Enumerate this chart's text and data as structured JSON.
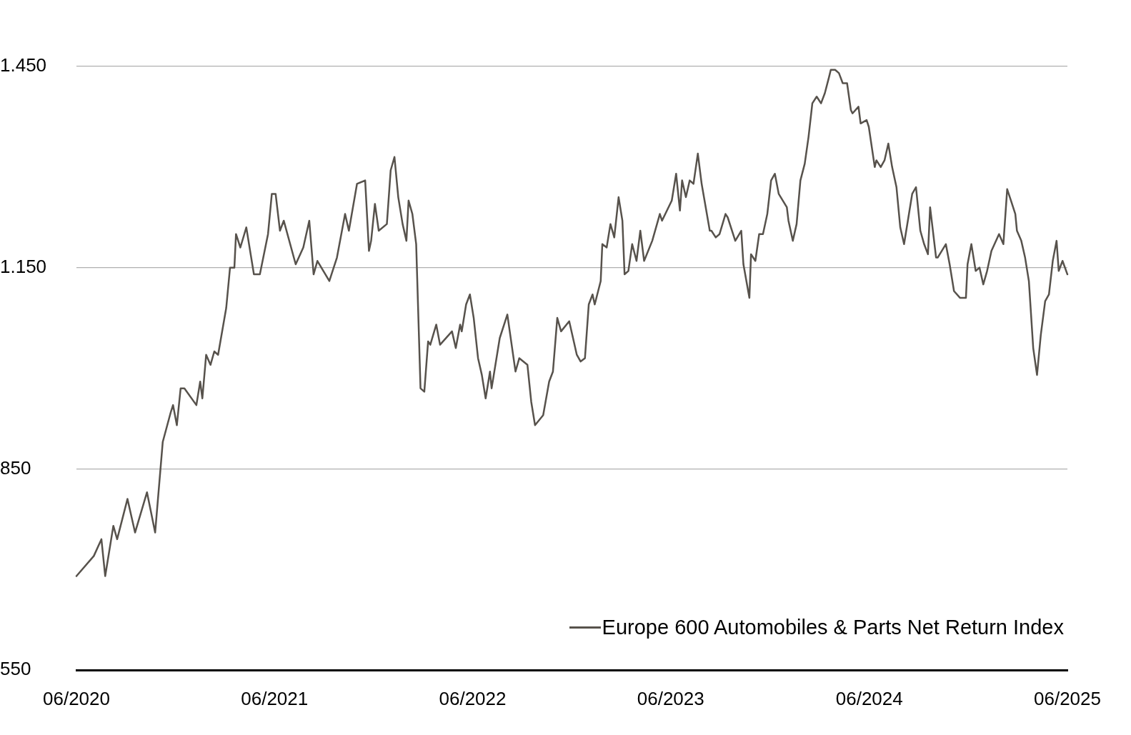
{
  "chart_data": {
    "type": "line",
    "grid": "y",
    "legend": "bottom right",
    "xlim": [
      "2020-06",
      "2025-06"
    ],
    "xticks": [
      {
        "value": "2020-06",
        "label": "06/2020"
      },
      {
        "value": "2021-06",
        "label": "06/2021"
      },
      {
        "value": "2022-06",
        "label": "06/2022"
      },
      {
        "value": "2023-06",
        "label": "06/2023"
      },
      {
        "value": "2024-06",
        "label": "06/2024"
      },
      {
        "value": "2025-06",
        "label": "06/2025"
      }
    ],
    "ylim": [
      550,
      1450
    ],
    "yticks": [
      {
        "value": 550,
        "label": "550"
      },
      {
        "value": 850,
        "label": "850"
      },
      {
        "value": 1150,
        "label": "1.150"
      },
      {
        "value": 1450,
        "label": "1.450"
      }
    ],
    "series": [
      {
        "name": "Europe 600 Automobiles & Parts Net Return Index",
        "color": "#57524c",
        "x": [
          "2020-06-01",
          "2020-07-03",
          "2020-07-17",
          "2020-07-24",
          "2020-08-08",
          "2020-08-15",
          "2020-09-03",
          "2020-09-17",
          "2020-10-09",
          "2020-10-24",
          "2020-11-07",
          "2020-11-22",
          "2020-11-26",
          "2020-12-03",
          "2020-12-10",
          "2020-12-17",
          "2021-01-08",
          "2021-01-15",
          "2021-01-19",
          "2021-01-26",
          "2021-02-03",
          "2021-02-10",
          "2021-02-17",
          "2021-03-04",
          "2021-03-11",
          "2021-03-19",
          "2021-03-22",
          "2021-03-30",
          "2021-04-10",
          "2021-04-24",
          "2021-05-05",
          "2021-05-20",
          "2021-05-27",
          "2021-06-03",
          "2021-06-11",
          "2021-06-18",
          "2021-07-10",
          "2021-07-24",
          "2021-08-04",
          "2021-08-12",
          "2021-08-19",
          "2021-09-10",
          "2021-09-24",
          "2021-10-09",
          "2021-10-16",
          "2021-10-31",
          "2021-11-15",
          "2021-11-22",
          "2021-11-26",
          "2021-12-03",
          "2021-12-10",
          "2021-12-25",
          "2022-01-01",
          "2022-01-08",
          "2022-01-15",
          "2022-01-23",
          "2022-01-30",
          "2022-02-03",
          "2022-02-10",
          "2022-02-17",
          "2022-02-25",
          "2022-03-04",
          "2022-03-11",
          "2022-03-15",
          "2022-03-26",
          "2022-04-02",
          "2022-04-24",
          "2022-05-01",
          "2022-05-09",
          "2022-05-12",
          "2022-05-20",
          "2022-05-27",
          "2022-06-03",
          "2022-06-11",
          "2022-06-18",
          "2022-06-25",
          "2022-07-03",
          "2022-07-06",
          "2022-07-21",
          "2022-08-04",
          "2022-08-19",
          "2022-08-26",
          "2022-09-10",
          "2022-09-17",
          "2022-09-24",
          "2022-10-09",
          "2022-10-20",
          "2022-10-27",
          "2022-11-04",
          "2022-11-11",
          "2022-11-26",
          "2022-12-10",
          "2022-12-17",
          "2022-12-25",
          "2023-01-01",
          "2023-01-08",
          "2023-01-12",
          "2023-01-23",
          "2023-01-26",
          "2023-02-03",
          "2023-02-10",
          "2023-02-17",
          "2023-02-25",
          "2023-03-04",
          "2023-03-08",
          "2023-03-15",
          "2023-03-22",
          "2023-03-30",
          "2023-04-06",
          "2023-04-13",
          "2023-04-28",
          "2023-05-12",
          "2023-05-16",
          "2023-06-03",
          "2023-06-11",
          "2023-06-18",
          "2023-06-22",
          "2023-06-29",
          "2023-07-06",
          "2023-07-13",
          "2023-07-21",
          "2023-07-28",
          "2023-08-12",
          "2023-08-15",
          "2023-08-23",
          "2023-08-30",
          "2023-09-10",
          "2023-09-14",
          "2023-09-28",
          "2023-10-09",
          "2023-10-13",
          "2023-10-24",
          "2023-10-27",
          "2023-11-04",
          "2023-11-11",
          "2023-11-18",
          "2023-11-26",
          "2023-12-03",
          "2023-12-10",
          "2023-12-17",
          "2024-01-01",
          "2024-01-04",
          "2024-01-12",
          "2024-01-19",
          "2024-01-26",
          "2024-02-03",
          "2024-02-10",
          "2024-02-17",
          "2024-02-25",
          "2024-03-04",
          "2024-03-11",
          "2024-03-19",
          "2024-03-22",
          "2024-03-30",
          "2024-04-06",
          "2024-04-13",
          "2024-04-21",
          "2024-04-28",
          "2024-05-01",
          "2024-05-12",
          "2024-05-16",
          "2024-05-27",
          "2024-05-31",
          "2024-06-11",
          "2024-06-14",
          "2024-06-22",
          "2024-06-29",
          "2024-07-06",
          "2024-07-13",
          "2024-07-21",
          "2024-07-28",
          "2024-08-04",
          "2024-08-12",
          "2024-08-19",
          "2024-08-26",
          "2024-09-03",
          "2024-09-10",
          "2024-09-17",
          "2024-09-21",
          "2024-10-02",
          "2024-10-05",
          "2024-10-20",
          "2024-10-27",
          "2024-11-04",
          "2024-11-15",
          "2024-11-26",
          "2024-11-29",
          "2024-12-06",
          "2024-12-14",
          "2024-12-21",
          "2024-12-28",
          "2025-01-04",
          "2025-01-12",
          "2025-01-26",
          "2025-02-03",
          "2025-02-10",
          "2025-02-17",
          "2025-02-25",
          "2025-02-28",
          "2025-03-08",
          "2025-03-15",
          "2025-03-22",
          "2025-03-30",
          "2025-04-06",
          "2025-04-13",
          "2025-04-21",
          "2025-04-28",
          "2025-05-05",
          "2025-05-12",
          "2025-05-16",
          "2025-05-23",
          "2025-06-01"
        ],
        "values": [
          690,
          720,
          745,
          690,
          765,
          745,
          805,
          755,
          815,
          755,
          890,
          935,
          945,
          915,
          970,
          970,
          945,
          980,
          955,
          1020,
          1005,
          1025,
          1020,
          1090,
          1150,
          1150,
          1200,
          1180,
          1210,
          1140,
          1140,
          1200,
          1260,
          1260,
          1205,
          1220,
          1155,
          1180,
          1220,
          1140,
          1160,
          1130,
          1165,
          1230,
          1205,
          1275,
          1280,
          1175,
          1190,
          1245,
          1205,
          1215,
          1295,
          1315,
          1255,
          1215,
          1190,
          1250,
          1230,
          1185,
          970,
          965,
          1040,
          1035,
          1065,
          1035,
          1055,
          1030,
          1065,
          1055,
          1095,
          1110,
          1075,
          1015,
          990,
          955,
          995,
          970,
          1045,
          1080,
          995,
          1015,
          1005,
          950,
          915,
          930,
          980,
          995,
          1075,
          1055,
          1070,
          1020,
          1010,
          1015,
          1095,
          1110,
          1095,
          1130,
          1185,
          1180,
          1215,
          1195,
          1255,
          1220,
          1140,
          1145,
          1185,
          1160,
          1205,
          1160,
          1190,
          1230,
          1220,
          1250,
          1290,
          1235,
          1280,
          1255,
          1280,
          1275,
          1320,
          1275,
          1205,
          1205,
          1195,
          1200,
          1230,
          1225,
          1190,
          1205,
          1155,
          1105,
          1170,
          1160,
          1200,
          1200,
          1230,
          1280,
          1290,
          1260,
          1240,
          1220,
          1190,
          1215,
          1280,
          1305,
          1345,
          1395,
          1405,
          1395,
          1410,
          1435,
          1445,
          1445,
          1440,
          1425,
          1425,
          1385,
          1380,
          1390,
          1365,
          1370,
          1360,
          1300,
          1310,
          1300,
          1310,
          1335,
          1300,
          1270,
          1210,
          1185,
          1225,
          1260,
          1270,
          1205,
          1185,
          1170,
          1240,
          1165,
          1165,
          1185,
          1155,
          1115,
          1105,
          1105,
          1155,
          1185,
          1145,
          1150,
          1125,
          1145,
          1175,
          1200,
          1185,
          1267,
          1250,
          1230,
          1205,
          1190,
          1165,
          1130,
          1030,
          990,
          1050,
          1100,
          1110,
          1160,
          1190,
          1145,
          1160,
          1140
        ]
      }
    ]
  }
}
